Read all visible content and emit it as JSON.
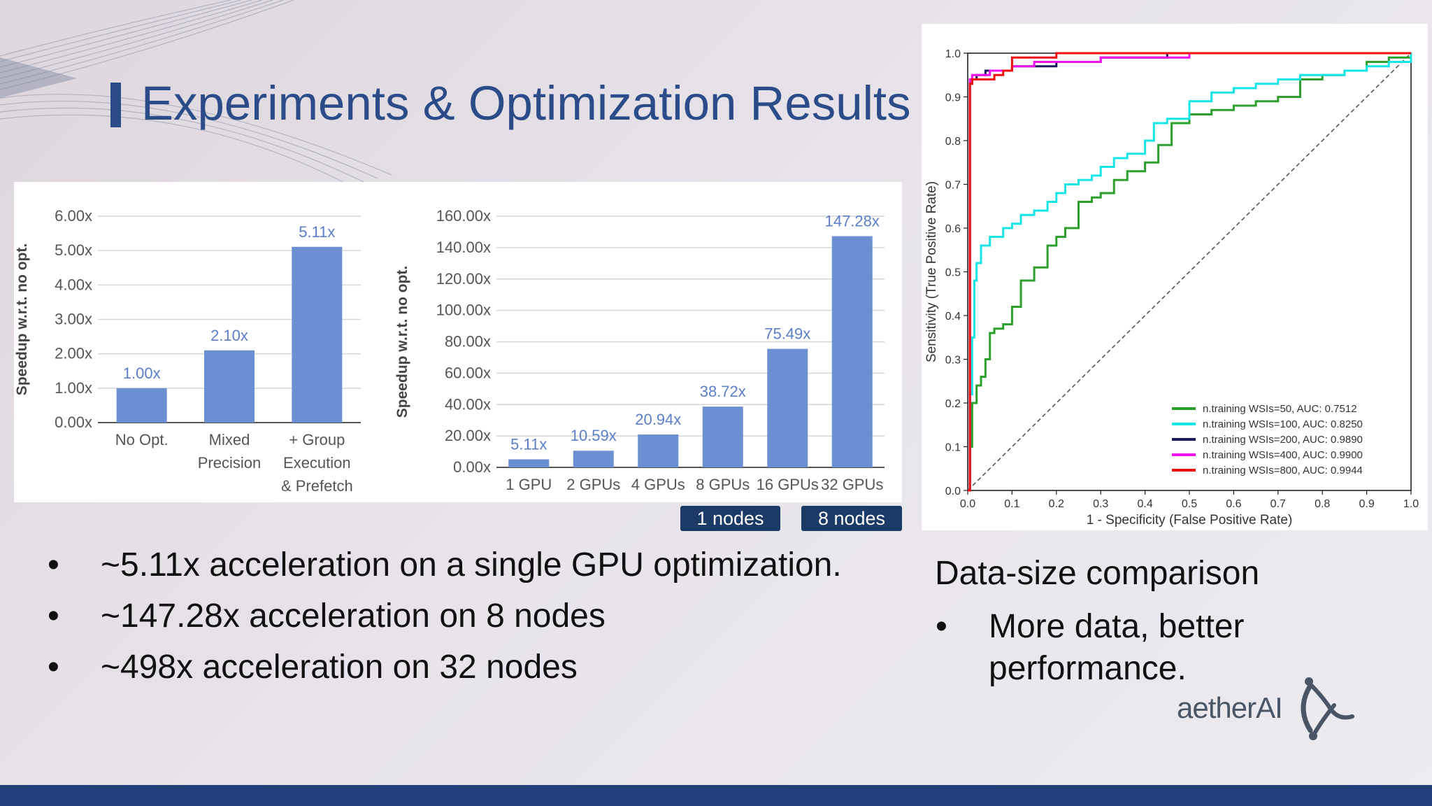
{
  "title": "Experiments & Optimization Results",
  "colors": {
    "title": "#2b4c89",
    "bar": "#6b8fd0",
    "bar_label": "#5b7fc7",
    "badge": "#1b3a66",
    "footer": "#21407a"
  },
  "chart_data": [
    {
      "type": "bar",
      "categories": [
        "No Opt.",
        "Mixed\nPrecision",
        "+ Group\nExecution\n& Prefetch"
      ],
      "values": [
        1.0,
        2.1,
        5.11
      ],
      "value_labels": [
        "1.00x",
        "2.10x",
        "5.11x"
      ],
      "ylabel": "Speedup w.r.t. no opt.",
      "ylim": [
        0,
        6
      ],
      "yticks": [
        "0.00x",
        "1.00x",
        "2.00x",
        "3.00x",
        "4.00x",
        "5.00x",
        "6.00x"
      ],
      "grid": true
    },
    {
      "type": "bar",
      "categories": [
        "1 GPU",
        "2 GPUs",
        "4 GPUs",
        "8 GPUs",
        "16 GPUs",
        "32 GPUs"
      ],
      "values": [
        5.11,
        10.59,
        20.94,
        38.72,
        75.49,
        147.28
      ],
      "value_labels": [
        "5.11x",
        "10.59x",
        "20.94x",
        "38.72x",
        "75.49x",
        "147.28x"
      ],
      "ylabel": "Speedup w.r.t. no opt.",
      "ylim": [
        0,
        160
      ],
      "yticks": [
        "0.00x",
        "20.00x",
        "40.00x",
        "60.00x",
        "80.00x",
        "100.00x",
        "120.00x",
        "140.00x",
        "160.00x"
      ],
      "grid": true
    },
    {
      "type": "line",
      "xlabel": "1 - Specificity (False Positive Rate)",
      "ylabel": "Sensitivity (True Positive Rate)",
      "xlim": [
        0,
        1
      ],
      "ylim": [
        0,
        1
      ],
      "xticks": [
        "0.0",
        "0.1",
        "0.2",
        "0.3",
        "0.4",
        "0.5",
        "0.6",
        "0.7",
        "0.8",
        "0.9",
        "1.0"
      ],
      "yticks": [
        "0.0",
        "0.1",
        "0.2",
        "0.3",
        "0.4",
        "0.5",
        "0.6",
        "0.7",
        "0.8",
        "0.9",
        "1.0"
      ],
      "legend_position": "bottom-right",
      "series": [
        {
          "name": "n.training WSIs=50, AUC: 0.7512",
          "color": "#2ca02c",
          "x": [
            0,
            0.005,
            0.01,
            0.02,
            0.03,
            0.04,
            0.05,
            0.06,
            0.08,
            0.1,
            0.12,
            0.15,
            0.18,
            0.2,
            0.22,
            0.25,
            0.28,
            0.3,
            0.33,
            0.36,
            0.4,
            0.43,
            0.46,
            0.5,
            0.55,
            0.6,
            0.65,
            0.7,
            0.75,
            0.8,
            0.85,
            0.9,
            0.95,
            1.0
          ],
          "y": [
            0,
            0.1,
            0.2,
            0.24,
            0.26,
            0.3,
            0.36,
            0.37,
            0.38,
            0.42,
            0.48,
            0.51,
            0.56,
            0.58,
            0.6,
            0.66,
            0.67,
            0.68,
            0.71,
            0.73,
            0.75,
            0.79,
            0.84,
            0.86,
            0.87,
            0.88,
            0.89,
            0.9,
            0.94,
            0.95,
            0.96,
            0.98,
            0.99,
            1.0
          ]
        },
        {
          "name": "n.training WSIs=100, AUC: 0.8250",
          "color": "#17e4e4",
          "x": [
            0,
            0.005,
            0.01,
            0.015,
            0.02,
            0.03,
            0.05,
            0.08,
            0.1,
            0.12,
            0.15,
            0.18,
            0.2,
            0.22,
            0.25,
            0.28,
            0.3,
            0.33,
            0.36,
            0.4,
            0.42,
            0.45,
            0.5,
            0.55,
            0.6,
            0.65,
            0.7,
            0.75,
            0.8,
            0.85,
            0.9,
            0.95,
            1.0
          ],
          "y": [
            0,
            0.22,
            0.35,
            0.48,
            0.52,
            0.56,
            0.58,
            0.6,
            0.61,
            0.63,
            0.64,
            0.66,
            0.68,
            0.7,
            0.71,
            0.72,
            0.74,
            0.76,
            0.77,
            0.8,
            0.84,
            0.85,
            0.89,
            0.91,
            0.92,
            0.93,
            0.94,
            0.95,
            0.95,
            0.96,
            0.97,
            0.98,
            1.0
          ]
        },
        {
          "name": "n.training WSIs=200, AUC: 0.9890",
          "color": "#1a1a5e",
          "x": [
            0,
            0.005,
            0.01,
            0.02,
            0.04,
            0.06,
            0.1,
            0.15,
            0.2,
            0.3,
            0.4,
            0.45,
            1.0
          ],
          "y": [
            0,
            0.93,
            0.94,
            0.95,
            0.96,
            0.96,
            0.97,
            0.97,
            0.98,
            0.99,
            0.99,
            1.0,
            1.0
          ]
        },
        {
          "name": "n.training WSIs=400, AUC: 0.9900",
          "color": "#ee11ee",
          "x": [
            0,
            0.005,
            0.01,
            0.03,
            0.05,
            0.1,
            0.15,
            0.2,
            0.3,
            0.4,
            0.5,
            1.0
          ],
          "y": [
            0,
            0.94,
            0.95,
            0.95,
            0.96,
            0.97,
            0.98,
            0.98,
            0.99,
            0.99,
            1.0,
            1.0
          ]
        },
        {
          "name": "n.training WSIs=800, AUC: 0.9944",
          "color": "#ee1111",
          "x": [
            0,
            0.005,
            0.01,
            0.03,
            0.06,
            0.08,
            0.1,
            0.15,
            0.2,
            1.0
          ],
          "y": [
            0,
            0.93,
            0.94,
            0.94,
            0.95,
            0.96,
            0.99,
            0.99,
            1.0,
            1.0
          ]
        }
      ]
    }
  ],
  "node_labels": [
    "1 nodes",
    "8 nodes"
  ],
  "bullets": [
    "~5.11x acceleration on a single GPU optimization.",
    "~147.28x acceleration on 8 nodes",
    "~498x acceleration on 32 nodes"
  ],
  "bullet_symbol": "•",
  "side": {
    "heading": "Data-size comparison",
    "bullet": "More data, better performance."
  },
  "logo": {
    "text": "aetherAI"
  }
}
